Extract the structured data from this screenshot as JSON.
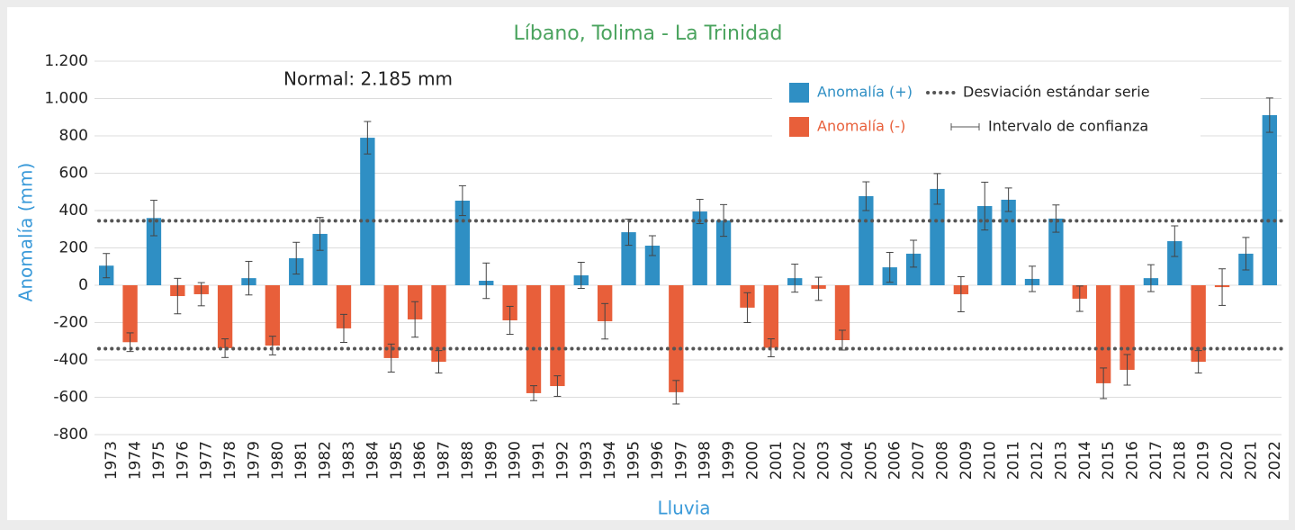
{
  "chart_data": {
    "type": "bar",
    "title": "Líbano, Tolima - La Trinidad",
    "y_label": "Anomalía (mm)",
    "x_label": "Lluvia",
    "annotation": "Normal: 2.185 mm",
    "categories": [
      "1973",
      "1974",
      "1975",
      "1976",
      "1977",
      "1978",
      "1979",
      "1980",
      "1981",
      "1982",
      "1983",
      "1984",
      "1985",
      "1986",
      "1987",
      "1988",
      "1989",
      "1990",
      "1991",
      "1992",
      "1993",
      "1994",
      "1995",
      "1996",
      "1997",
      "1998",
      "1999",
      "2000",
      "2001",
      "2002",
      "2003",
      "2004",
      "2005",
      "2006",
      "2007",
      "2008",
      "2009",
      "2010",
      "2011",
      "2012",
      "2013",
      "2014",
      "2015",
      "2016",
      "2017",
      "2018",
      "2019",
      "2020",
      "2021",
      "2022"
    ],
    "values": [
      105,
      -305,
      360,
      -58,
      -48,
      -337,
      38,
      -323,
      145,
      275,
      -231,
      790,
      -390,
      -183,
      -410,
      453,
      24,
      -188,
      -578,
      -540,
      53,
      -193,
      284,
      212,
      -573,
      395,
      347,
      -120,
      -335,
      38,
      -19,
      -294,
      477,
      96,
      169,
      516,
      -48,
      424,
      458,
      34,
      357,
      -72,
      -525,
      -453,
      38,
      236,
      -410,
      -10,
      169,
      911
    ],
    "errors": [
      65,
      50,
      95,
      95,
      62,
      50,
      90,
      50,
      85,
      88,
      75,
      87,
      75,
      95,
      60,
      80,
      95,
      75,
      40,
      55,
      70,
      95,
      70,
      53,
      63,
      65,
      85,
      80,
      48,
      75,
      62,
      53,
      77,
      80,
      72,
      82,
      94,
      128,
      63,
      68,
      73,
      68,
      82,
      82,
      72,
      82,
      60,
      98,
      87,
      92
    ],
    "positive_name": "Anomalía (+)",
    "negative_name": "Anomalía (-)",
    "positive_color": "#2f8fc4",
    "negative_color": "#e85f3a",
    "std_name": "Desviación estándar serie",
    "std_lines": [
      345,
      -340
    ],
    "error_name": "Intervalo de confianza",
    "ylim": [
      -800,
      1200
    ],
    "yticks": [
      -800,
      -600,
      -400,
      -200,
      0,
      200,
      400,
      600,
      800,
      {
        "value": 1000,
        "label": "1.000"
      },
      {
        "value": 1200,
        "label": "1.200"
      }
    ],
    "grid": true
  }
}
